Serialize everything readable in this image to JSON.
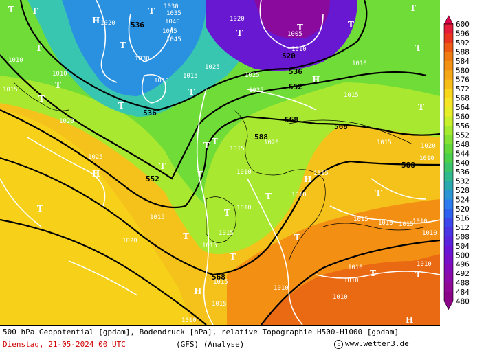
{
  "footer": {
    "description": "500 hPa Geopotential [gpdam], Bodendruck [hPa], relative Topographie H500-H1000 [gpdam]",
    "date": "Dienstag, 21-05-2024  00 UTC",
    "model": "(GFS)",
    "analysis": "(Analyse)",
    "credit": "www.wetter3.de"
  },
  "colorbar": {
    "levels": [
      600,
      596,
      592,
      588,
      584,
      580,
      576,
      572,
      568,
      564,
      560,
      556,
      552,
      548,
      544,
      540,
      536,
      532,
      528,
      524,
      520,
      516,
      512,
      508,
      504,
      500,
      496,
      492,
      488,
      484,
      480
    ],
    "colors": [
      "#e2004c",
      "#e61d3a",
      "#ea3420",
      "#ee5a14",
      "#f07b12",
      "#f29114",
      "#f4a616",
      "#f6bd18",
      "#f8d61c",
      "#f5e526",
      "#e6ee2a",
      "#c8ef2c",
      "#a4ea2e",
      "#84e232",
      "#64d83a",
      "#4cd04c",
      "#3cc46c",
      "#30b88e",
      "#2aa8b0",
      "#2a94d4",
      "#2c7cf0",
      "#3062f0",
      "#3c48ec",
      "#4a34e4",
      "#5a24dc",
      "#6a16d4",
      "#7810c8",
      "#840cb8",
      "#8c0aa8",
      "#900896",
      "#8a0488"
    ]
  },
  "geopotential_labels": [
    "536",
    "536",
    "520",
    "536",
    "552",
    "552",
    "568",
    "568",
    "588",
    "588",
    "568"
  ],
  "pressure_labels": [
    "1030",
    "1035",
    "1040",
    "1045",
    "1045",
    "1020",
    "1020",
    "1005",
    "1010",
    "1010",
    "1010",
    "1025",
    "1025",
    "1030",
    "1010",
    "1015",
    "1020",
    "1015",
    "1025",
    "1015",
    "1020",
    "1015",
    "1010",
    "1025",
    "1020",
    "1015",
    "1010",
    "1010",
    "1015",
    "1020",
    "1015",
    "1015",
    "1010",
    "1015",
    "1015",
    "1010",
    "1010",
    "1010",
    "1015",
    "1010",
    "1010",
    "1010",
    "1010",
    "1010",
    "1015",
    "1010",
    "1015",
    "1010"
  ],
  "pressure_systems": {
    "tief": "T",
    "hoch": "H"
  }
}
